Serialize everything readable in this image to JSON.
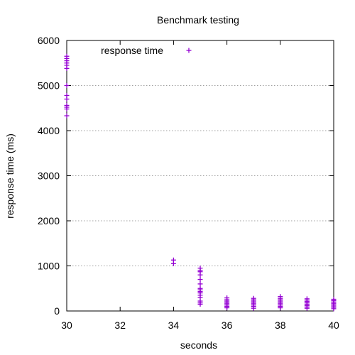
{
  "chart_data": {
    "type": "scatter",
    "title": "Benchmark testing",
    "xlabel": "seconds",
    "ylabel": "response time (ms)",
    "xlim": [
      30,
      40
    ],
    "ylim": [
      0,
      6000
    ],
    "xticks": [
      "30",
      "32",
      "34",
      "36",
      "38",
      "40"
    ],
    "yticks": [
      "0",
      "1000",
      "2000",
      "3000",
      "4000",
      "5000",
      "6000"
    ],
    "grid": "horizontal-dotted",
    "legend_position": "top-left",
    "marker": "plus",
    "color": "#9400d3",
    "series": [
      {
        "name": "response time",
        "points": [
          [
            30,
            5650
          ],
          [
            30,
            5600
          ],
          [
            30,
            5550
          ],
          [
            30,
            5500
          ],
          [
            30,
            5450
          ],
          [
            30,
            5380
          ],
          [
            30,
            5000
          ],
          [
            30,
            4780
          ],
          [
            30,
            4700
          ],
          [
            30,
            4560
          ],
          [
            30,
            4520
          ],
          [
            30,
            4480
          ],
          [
            30,
            4330
          ],
          [
            34,
            1130
          ],
          [
            34,
            1050
          ],
          [
            35,
            950
          ],
          [
            35,
            900
          ],
          [
            35,
            870
          ],
          [
            35,
            800
          ],
          [
            35,
            700
          ],
          [
            35,
            600
          ],
          [
            35,
            500
          ],
          [
            35,
            470
          ],
          [
            35,
            430
          ],
          [
            35,
            400
          ],
          [
            35,
            350
          ],
          [
            35,
            300
          ],
          [
            35,
            220
          ],
          [
            35,
            180
          ],
          [
            35,
            150
          ],
          [
            36,
            290
          ],
          [
            36,
            250
          ],
          [
            36,
            220
          ],
          [
            36,
            190
          ],
          [
            36,
            160
          ],
          [
            36,
            130
          ],
          [
            36,
            100
          ],
          [
            36,
            70
          ],
          [
            37,
            280
          ],
          [
            37,
            250
          ],
          [
            37,
            220
          ],
          [
            37,
            190
          ],
          [
            37,
            160
          ],
          [
            37,
            130
          ],
          [
            37,
            100
          ],
          [
            37,
            60
          ],
          [
            38,
            320
          ],
          [
            38,
            280
          ],
          [
            38,
            250
          ],
          [
            38,
            220
          ],
          [
            38,
            190
          ],
          [
            38,
            160
          ],
          [
            38,
            130
          ],
          [
            38,
            100
          ],
          [
            38,
            70
          ],
          [
            39,
            270
          ],
          [
            39,
            240
          ],
          [
            39,
            210
          ],
          [
            39,
            180
          ],
          [
            39,
            150
          ],
          [
            39,
            120
          ],
          [
            39,
            90
          ],
          [
            39,
            60
          ],
          [
            40,
            260
          ],
          [
            40,
            230
          ],
          [
            40,
            200
          ],
          [
            40,
            170
          ],
          [
            40,
            140
          ],
          [
            40,
            110
          ],
          [
            40,
            80
          ],
          [
            40,
            50
          ]
        ]
      }
    ]
  }
}
